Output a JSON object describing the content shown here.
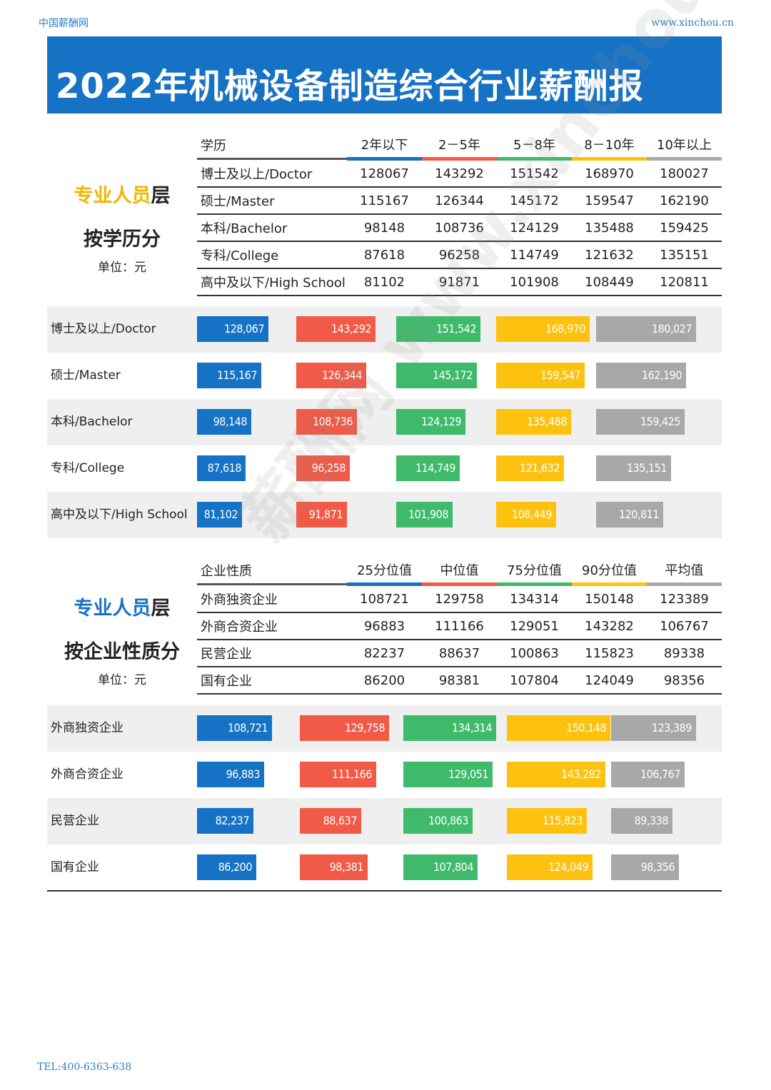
{
  "header": {
    "site": "中国薪酬网",
    "url": "www.xinchou.cn"
  },
  "title": "2022年机械设备制造综合行业薪酬报",
  "footer": "TEL:400-6363-638",
  "watermark": "薪酬网 www.xinchou.cn",
  "colors": [
    "#1672c4",
    "#f05a47",
    "#3fba6b",
    "#fdc20f",
    "#a8a8a8"
  ],
  "section1": {
    "label_line1_colored": "专业人员",
    "label_line1_tail": "层",
    "label_line1_color": "#f5b500",
    "label_line2": "按学历分",
    "unit": "单位：元",
    "table": {
      "headers": [
        "学历",
        "2年以下",
        "2－5年",
        "5－8年",
        "8－10年",
        "10年以上"
      ],
      "rows": [
        [
          "博士及以上/Doctor",
          "128067",
          "143292",
          "151542",
          "168970",
          "180027"
        ],
        [
          "硕士/Master",
          "115167",
          "126344",
          "145172",
          "159547",
          "162190"
        ],
        [
          "本科/Bachelor",
          "98148",
          "108736",
          "124129",
          "135488",
          "159425"
        ],
        [
          "专科/College",
          "87618",
          "96258",
          "114749",
          "121632",
          "135151"
        ],
        [
          "高中及以下/High School",
          "81102",
          "91871",
          "101908",
          "108449",
          "120811"
        ]
      ]
    }
  },
  "section2": {
    "label_line1_colored": "专业人员",
    "label_line1_tail": "层",
    "label_line1_color": "#1672c4",
    "label_line2": "按企业性质分",
    "unit": "单位：元",
    "table": {
      "headers": [
        "企业性质",
        "25分位值",
        "中位值",
        "75分位值",
        "90分位值",
        "平均值"
      ],
      "rows": [
        [
          "外商独资企业",
          "108721",
          "129758",
          "134314",
          "150148",
          "123389"
        ],
        [
          "外商合资企业",
          "96883",
          "111166",
          "129051",
          "143282",
          "106767"
        ],
        [
          "民营企业",
          "82237",
          "88637",
          "100863",
          "115823",
          "89338"
        ],
        [
          "国有企业",
          "86200",
          "98381",
          "107804",
          "124049",
          "98356"
        ]
      ]
    }
  },
  "chart_data": [
    {
      "type": "bar",
      "categories": [
        "博士及以上/Doctor",
        "硕士/Master",
        "本科/Bachelor",
        "专科/College",
        "高中及以下/High School"
      ],
      "series": [
        {
          "name": "2年以下",
          "values": [
            128067,
            115167,
            98148,
            87618,
            81102
          ],
          "labels": [
            "128,067",
            "115,167",
            "98,148",
            "87,618",
            "81,102"
          ]
        },
        {
          "name": "2－5年",
          "values": [
            143292,
            126344,
            108736,
            96258,
            91871
          ],
          "labels": [
            "143,292",
            "126,344",
            "108,736",
            "96,258",
            "91,871"
          ]
        },
        {
          "name": "5－8年",
          "values": [
            151542,
            145172,
            124129,
            114749,
            101908
          ],
          "labels": [
            "151,542",
            "145,172",
            "124,129",
            "114,749",
            "101,908"
          ]
        },
        {
          "name": "8－10年",
          "values": [
            168970,
            159547,
            135488,
            121632,
            108449
          ],
          "labels": [
            "168,970",
            "159,547",
            "135,488",
            "121,632",
            "108,449"
          ]
        },
        {
          "name": "10年以上",
          "values": [
            180027,
            162190,
            159425,
            135151,
            120811
          ],
          "labels": [
            "180,027",
            "162,190",
            "159,425",
            "135,151",
            "120,811"
          ]
        }
      ]
    },
    {
      "type": "bar",
      "categories": [
        "外商独资企业",
        "外商合资企业",
        "民营企业",
        "国有企业"
      ],
      "series": [
        {
          "name": "25分位值",
          "values": [
            108721,
            96883,
            82237,
            86200
          ],
          "labels": [
            "108,721",
            "96,883",
            "82,237",
            "86,200"
          ]
        },
        {
          "name": "中位值",
          "values": [
            129758,
            111166,
            88637,
            98381
          ],
          "labels": [
            "129,758",
            "111,166",
            "88,637",
            "98,381"
          ]
        },
        {
          "name": "75分位值",
          "values": [
            134314,
            129051,
            100863,
            107804
          ],
          "labels": [
            "134,314",
            "129,051",
            "100,863",
            "107,804"
          ]
        },
        {
          "name": "90分位值",
          "values": [
            150148,
            143282,
            115823,
            124049
          ],
          "labels": [
            "150,148",
            "143,282",
            "115,823",
            "124,049"
          ]
        },
        {
          "name": "平均值",
          "values": [
            123389,
            106767,
            89338,
            98356
          ],
          "labels": [
            "123,389",
            "106,767",
            "89,338",
            "98,356"
          ]
        }
      ]
    }
  ]
}
